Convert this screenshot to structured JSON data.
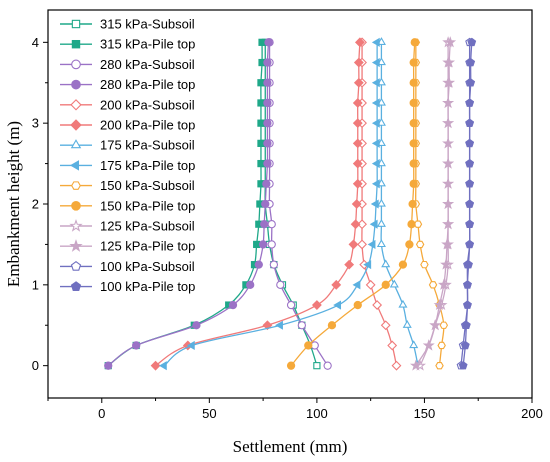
{
  "chart_data": {
    "type": "line",
    "xlabel": "Settlement (mm)",
    "ylabel": "Embankment height (m)",
    "xlim": [
      -25,
      200
    ],
    "ylim": [
      -0.4,
      4.4
    ],
    "xticks": [
      0,
      50,
      100,
      150,
      200
    ],
    "yticks": [
      0,
      1,
      2,
      3,
      4
    ],
    "legend_position": "top-left",
    "y": [
      0,
      0.25,
      0.5,
      0.75,
      1,
      1.25,
      1.5,
      1.75,
      2,
      2.25,
      2.5,
      2.75,
      3,
      3.25,
      3.5,
      3.75,
      4
    ],
    "series": [
      {
        "name": "315 kPa-Subsoil",
        "color": "#1fa889",
        "marker": "square",
        "filled": false,
        "values": [
          100,
          97,
          93,
          89,
          84,
          80,
          78,
          77,
          76,
          76,
          76,
          76,
          76,
          76,
          76,
          76,
          76
        ]
      },
      {
        "name": "315 kPa-Pile top",
        "color": "#1fa889",
        "marker": "square",
        "filled": true,
        "values": [
          3,
          16,
          43,
          59,
          67,
          71,
          72,
          73,
          73.5,
          74,
          74,
          74,
          74,
          74,
          74,
          74.5,
          74.5
        ]
      },
      {
        "name": "280 kPa-Subsoil",
        "color": "#9b72c6",
        "marker": "circle",
        "filled": false,
        "values": [
          105,
          99,
          93,
          88,
          83,
          80,
          79,
          79,
          78,
          78,
          78,
          78,
          78,
          78,
          78,
          78,
          78
        ]
      },
      {
        "name": "280 kPa-Pile top",
        "color": "#9b72c6",
        "marker": "circle",
        "filled": true,
        "values": [
          3,
          16,
          44,
          61,
          69,
          73,
          75,
          75.5,
          76,
          76.5,
          77,
          77,
          77,
          77,
          77,
          77,
          77.5
        ]
      },
      {
        "name": "200 kPa-Subsoil",
        "color": "#f07a7a",
        "marker": "diamond",
        "filled": false,
        "values": [
          137,
          135,
          132,
          128,
          125,
          122,
          121,
          121,
          121,
          121,
          121,
          121,
          121,
          121,
          121,
          121,
          121
        ]
      },
      {
        "name": "200 kPa-Pile top",
        "color": "#f07a7a",
        "marker": "diamond",
        "filled": true,
        "values": [
          25,
          40,
          77,
          100,
          109,
          115,
          117,
          118,
          118.5,
          119,
          119,
          119,
          119,
          119,
          119.5,
          119.5,
          120
        ]
      },
      {
        "name": "175 kPa-Subsoil",
        "color": "#5ab0e0",
        "marker": "triangle-up",
        "filled": false,
        "values": [
          147,
          145,
          142,
          140,
          136,
          132,
          130,
          130,
          130,
          130,
          130,
          130,
          130,
          130,
          130,
          130,
          130
        ]
      },
      {
        "name": "175 kPa-Pile top",
        "color": "#5ab0e0",
        "marker": "triangle-left",
        "filled": true,
        "values": [
          29,
          42,
          83,
          110,
          119,
          124,
          126,
          127,
          127.5,
          128,
          128,
          128,
          128,
          128,
          128,
          128,
          128
        ]
      },
      {
        "name": "150 kPa-Subsoil",
        "color": "#f5a93a",
        "marker": "hexagon",
        "filled": false,
        "values": [
          157,
          158,
          159,
          157,
          154,
          150,
          148,
          147,
          146,
          146,
          146,
          146,
          146,
          146,
          146,
          146,
          146
        ]
      },
      {
        "name": "150 kPa-Pile top",
        "color": "#f5a93a",
        "marker": "circle",
        "filled": true,
        "values": [
          88,
          96,
          107,
          119,
          132,
          140,
          143,
          144,
          144.5,
          145,
          145,
          145,
          145,
          145,
          145,
          145,
          145.5
        ]
      },
      {
        "name": "125 kPa-Subsoil",
        "color": "#c9a6c6",
        "marker": "star",
        "filled": false,
        "values": [
          148,
          152,
          155,
          158,
          160,
          161,
          161,
          161,
          161,
          161,
          161,
          161,
          161,
          161,
          161,
          161,
          161
        ]
      },
      {
        "name": "125 kPa-Pile top",
        "color": "#c9a6c6",
        "marker": "star",
        "filled": true,
        "values": [
          146,
          152,
          155,
          157,
          159,
          160,
          160.5,
          161,
          161,
          161,
          161,
          161,
          161,
          161,
          161.5,
          161.5,
          162
        ]
      },
      {
        "name": "100 kPa-Subsoil",
        "color": "#7070c0",
        "marker": "pentagon",
        "filled": false,
        "values": [
          167,
          168,
          169,
          170,
          170,
          170,
          171,
          171,
          171,
          171,
          171,
          171,
          171,
          171,
          171,
          171,
          171
        ]
      },
      {
        "name": "100 kPa-Pile top",
        "color": "#7070c0",
        "marker": "pentagon",
        "filled": true,
        "values": [
          168,
          169,
          169.5,
          170,
          170,
          170.5,
          171,
          171,
          171,
          171,
          171,
          171,
          171,
          171,
          171.5,
          171.5,
          172
        ]
      }
    ]
  }
}
